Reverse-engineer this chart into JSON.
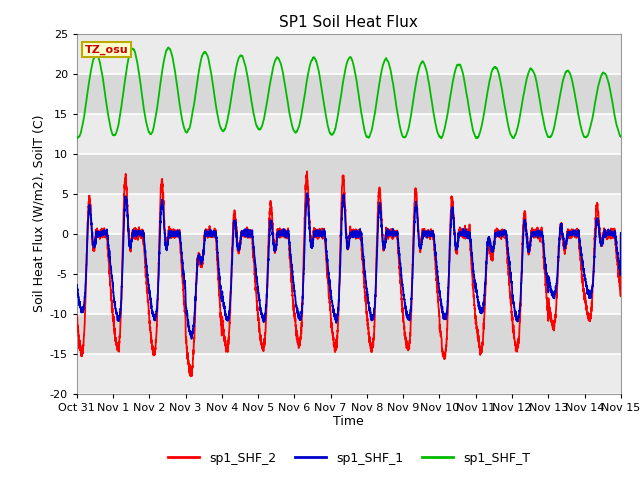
{
  "title": "SP1 Soil Heat Flux",
  "xlabel": "Time",
  "ylabel": "Soil Heat Flux (W/m2), SoilT (C)",
  "ylim": [
    -20,
    25
  ],
  "xlim_days": [
    0,
    15
  ],
  "xtick_labels": [
    "Oct 31",
    "Nov 1",
    "Nov 2",
    "Nov 3",
    "Nov 4",
    "Nov 5",
    "Nov 6",
    "Nov 7",
    "Nov 8",
    "Nov 9",
    "Nov 10",
    "Nov 11",
    "Nov 12",
    "Nov 13",
    "Nov 14",
    "Nov 15"
  ],
  "yticks": [
    -20,
    -15,
    -10,
    -5,
    0,
    5,
    10,
    15,
    20,
    25
  ],
  "color_shf2": "#ff0000",
  "color_shf1": "#0000cc",
  "color_shft": "#00bb00",
  "legend_labels": [
    "sp1_SHF_2",
    "sp1_SHF_1",
    "sp1_SHF_T"
  ],
  "tz_label": "TZ_osu",
  "tz_box_color": "#ffffcc",
  "tz_border_color": "#bbaa00",
  "fig_bg_color": "#ffffff",
  "plot_bg_color": "#ffffff",
  "band_light": "#ebebeb",
  "band_dark": "#d8d8d8",
  "grid_color": "#ffffff",
  "title_fontsize": 11,
  "label_fontsize": 9,
  "tick_fontsize": 8
}
